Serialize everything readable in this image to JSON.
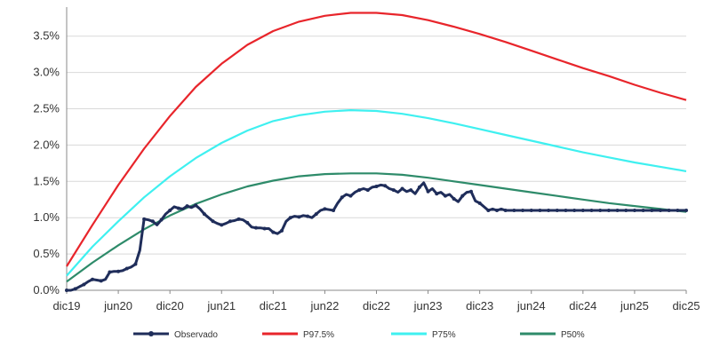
{
  "chart_data": {
    "type": "line",
    "title": "",
    "xlabel": "",
    "ylabel": "",
    "x_tick_labels": [
      "dic19",
      "jun20",
      "dic20",
      "jun21",
      "dic21",
      "jun22",
      "dic22",
      "jun23",
      "dic23",
      "jun24",
      "dic24",
      "jun25",
      "dic25"
    ],
    "y_tick_labels": [
      "0.0%",
      "0.5%",
      "1.0%",
      "1.5%",
      "2.0%",
      "2.5%",
      "3.0%",
      "3.5%"
    ],
    "ylim": [
      0,
      3.9
    ],
    "grid": "horizontal",
    "legend_position": "bottom",
    "series": [
      {
        "name": "Observado",
        "color": "#1f2d5a",
        "style": "line-with-markers",
        "x": [
          0,
          0.5,
          1,
          1.5,
          2,
          2.5,
          3,
          3.5,
          4,
          4.5,
          5,
          5.5,
          6,
          6.5,
          7,
          7.5,
          8,
          8.5,
          9,
          9.5,
          10,
          10.5,
          11,
          11.5,
          12,
          12.5,
          13,
          13.5,
          14,
          14.5,
          15,
          15.5,
          16,
          16.5,
          17,
          17.5,
          18,
          18.5,
          19,
          19.5,
          20,
          20.5,
          21,
          21.5,
          22,
          22.5,
          23,
          23.5,
          24,
          24.5,
          25,
          25.5,
          26,
          26.5,
          27,
          27.5,
          28,
          28.5,
          29,
          29.5,
          30,
          30.5,
          31,
          31.5,
          32,
          32.5,
          33,
          33.5,
          34,
          34.5,
          35,
          35.5,
          36,
          36.5,
          37,
          37.5,
          38,
          38.5,
          39,
          39.5,
          40,
          40.5,
          41,
          41.5,
          42,
          42.5,
          43,
          43.5,
          44,
          44.5,
          45,
          45.5,
          46,
          46.5,
          47,
          47.5,
          48,
          48.5,
          49,
          49.5,
          50,
          50.5,
          51,
          51.5,
          52,
          52.5,
          53,
          53.5,
          54,
          54.5,
          55,
          55.5,
          56,
          56.5,
          57,
          57.5,
          58,
          58.5,
          59,
          59.5,
          60,
          60.5,
          61,
          61.5,
          62,
          62.5,
          63,
          63.5,
          64,
          64.5,
          65,
          65.5,
          66,
          66.5,
          67,
          67.5,
          68,
          68.5,
          69,
          69.5,
          70,
          70.5,
          71,
          71.5,
          72
        ],
        "values": [
          0,
          0,
          0.02,
          0.05,
          0.08,
          0.12,
          0.15,
          0.14,
          0.13,
          0.15,
          0.25,
          0.26,
          0.26,
          0.27,
          0.3,
          0.32,
          0.36,
          0.55,
          0.98,
          0.97,
          0.95,
          0.9,
          0.97,
          1.05,
          1.1,
          1.15,
          1.13,
          1.12,
          1.16,
          1.14,
          1.17,
          1.12,
          1.05,
          1.0,
          0.95,
          0.92,
          0.9,
          0.92,
          0.95,
          0.96,
          0.98,
          0.97,
          0.93,
          0.87,
          0.86,
          0.86,
          0.85,
          0.85,
          0.8,
          0.78,
          0.82,
          0.95,
          1.0,
          1.02,
          1.01,
          1.03,
          1.02,
          1.0,
          1.05,
          1.1,
          1.12,
          1.11,
          1.1,
          1.2,
          1.28,
          1.32,
          1.3,
          1.35,
          1.38,
          1.4,
          1.38,
          1.42,
          1.43,
          1.45,
          1.44,
          1.4,
          1.38,
          1.35,
          1.4,
          1.36,
          1.38,
          1.33,
          1.42,
          1.48,
          1.36,
          1.4,
          1.33,
          1.35,
          1.3,
          1.32,
          1.26,
          1.22,
          1.3,
          1.35,
          1.36,
          1.23,
          1.2,
          1.15,
          1.1,
          1.12,
          1.1,
          1.12,
          1.1,
          1.1,
          1.1,
          1.1,
          1.1,
          1.1,
          1.1,
          1.1,
          1.1,
          1.1,
          1.1,
          1.1,
          1.1,
          1.1,
          1.1,
          1.1,
          1.1,
          1.1,
          1.1,
          1.1,
          1.1,
          1.1,
          1.1,
          1.1,
          1.1,
          1.1,
          1.1,
          1.1,
          1.1,
          1.1,
          1.1,
          1.1,
          1.1,
          1.1,
          1.1,
          1.1,
          1.1,
          1.1,
          1.1,
          1.1,
          1.1,
          1.1,
          1.1
        ]
      },
      {
        "name": "P97.5%",
        "color": "#e8252b",
        "style": "line",
        "x": [
          0,
          3,
          6,
          9,
          12,
          15,
          18,
          21,
          24,
          27,
          30,
          33,
          36,
          39,
          42,
          45,
          48,
          51,
          54,
          57,
          60,
          63,
          66,
          69,
          72
        ],
        "values": [
          0.33,
          0.9,
          1.45,
          1.95,
          2.4,
          2.8,
          3.12,
          3.38,
          3.57,
          3.7,
          3.78,
          3.82,
          3.82,
          3.79,
          3.72,
          3.63,
          3.53,
          3.42,
          3.3,
          3.18,
          3.06,
          2.95,
          2.83,
          2.72,
          2.62
        ]
      },
      {
        "name": "P75%",
        "color": "#3ff0f0",
        "style": "line",
        "x": [
          0,
          3,
          6,
          9,
          12,
          15,
          18,
          21,
          24,
          27,
          30,
          33,
          36,
          39,
          42,
          45,
          48,
          51,
          54,
          57,
          60,
          63,
          66,
          69,
          72
        ],
        "values": [
          0.2,
          0.6,
          0.95,
          1.28,
          1.57,
          1.82,
          2.03,
          2.2,
          2.33,
          2.41,
          2.46,
          2.48,
          2.47,
          2.43,
          2.37,
          2.3,
          2.22,
          2.14,
          2.06,
          1.98,
          1.9,
          1.83,
          1.76,
          1.7,
          1.64
        ]
      },
      {
        "name": "P50%",
        "color": "#2e8b6a",
        "style": "line",
        "x": [
          0,
          3,
          6,
          9,
          12,
          15,
          18,
          21,
          24,
          27,
          30,
          33,
          36,
          39,
          42,
          45,
          48,
          51,
          54,
          57,
          60,
          63,
          66,
          69,
          72
        ],
        "values": [
          0.12,
          0.38,
          0.62,
          0.84,
          1.03,
          1.19,
          1.32,
          1.43,
          1.51,
          1.57,
          1.6,
          1.61,
          1.61,
          1.59,
          1.55,
          1.5,
          1.45,
          1.4,
          1.35,
          1.3,
          1.25,
          1.2,
          1.16,
          1.12,
          1.08
        ]
      }
    ]
  }
}
